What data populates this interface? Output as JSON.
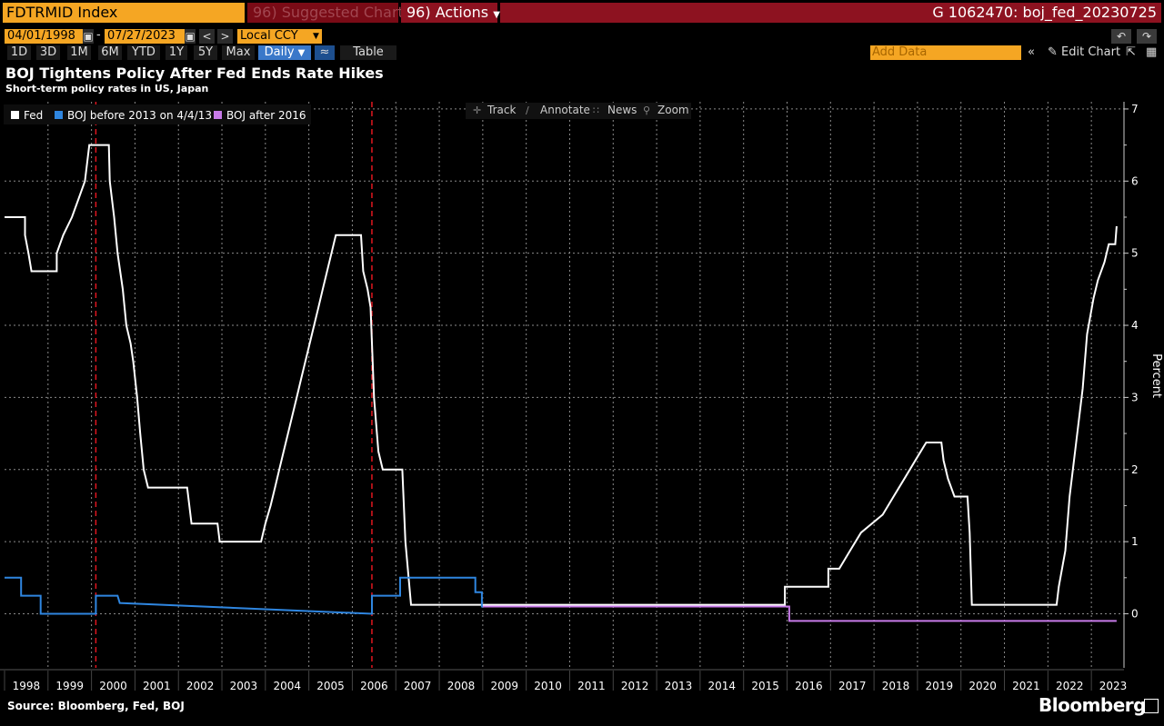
{
  "toolbar": {
    "ticker": "FDTRMID Index",
    "suggested": "Suggested Charts",
    "suggested_icon": "96",
    "actions": "Actions",
    "actions_icon": "96",
    "chart_id": "G 1062470: boj_fed_20230725",
    "start_date": "04/01/1998",
    "date_sep": "-",
    "end_date": "07/27/2023",
    "currency": "Local CCY",
    "periods": [
      "1D",
      "3D",
      "1M",
      "6M",
      "YTD",
      "1Y",
      "5Y",
      "Max"
    ],
    "frequency": "Daily",
    "table_label": "Table",
    "add_data_placeholder": "Add Data",
    "edit_chart": "Edit Chart"
  },
  "chart_tools": [
    "Track",
    "Annotate",
    "News",
    "Zoom"
  ],
  "source": "Source: Bloomberg, Fed, BOJ",
  "brand": "Bloomberg",
  "colors": {
    "fed": "#ffffff",
    "boj_before": "#2f86e0",
    "boj_after": "#c77ae8",
    "vline": "#e0161f",
    "grid": "#8a8a8a"
  },
  "chart_data": {
    "type": "line",
    "title": "BOJ Tightens Policy After Fed Ends Rate Hikes",
    "subtitle": "Short-term policy rates in US, Japan",
    "ylabel": "Percent",
    "ylim": [
      -0.75,
      7.1
    ],
    "yticks": [
      0,
      1,
      2,
      3,
      4,
      5,
      6,
      7
    ],
    "xlim": [
      1998.0,
      2023.75
    ],
    "xticks": [
      "1998",
      "1999",
      "2000",
      "2001",
      "2002",
      "2003",
      "2004",
      "2005",
      "2006",
      "2007",
      "2008",
      "2009",
      "2010",
      "2011",
      "2012",
      "2013",
      "2014",
      "2015",
      "2016",
      "2017",
      "2018",
      "2019",
      "2020",
      "2021",
      "2022",
      "2023"
    ],
    "legend": [
      "Fed",
      "BOJ before 2013 on 4/4/13",
      "BOJ after 2016"
    ],
    "legend_position": "top-left",
    "grid": true,
    "vlines": [
      2000.1,
      2006.45
    ],
    "series": [
      {
        "name": "Fed",
        "points": [
          [
            1998.0,
            5.5
          ],
          [
            1998.47,
            5.5
          ],
          [
            1998.47,
            5.25
          ],
          [
            1998.55,
            5.0
          ],
          [
            1998.62,
            4.75
          ],
          [
            1999.2,
            4.75
          ],
          [
            1999.2,
            5.0
          ],
          [
            1999.35,
            5.25
          ],
          [
            1999.55,
            5.5
          ],
          [
            1999.7,
            5.75
          ],
          [
            1999.85,
            6.0
          ],
          [
            1999.95,
            6.5
          ],
          [
            2000.4,
            6.5
          ],
          [
            2000.42,
            6.0
          ],
          [
            2000.52,
            5.5
          ],
          [
            2000.6,
            5.0
          ],
          [
            2000.72,
            4.5
          ],
          [
            2000.8,
            4.0
          ],
          [
            2000.9,
            3.75
          ],
          [
            2000.96,
            3.5
          ],
          [
            2001.05,
            3.0
          ],
          [
            2001.12,
            2.5
          ],
          [
            2001.2,
            2.0
          ],
          [
            2001.3,
            1.75
          ],
          [
            2002.2,
            1.75
          ],
          [
            2002.3,
            1.25
          ],
          [
            2002.9,
            1.25
          ],
          [
            2002.95,
            1.0
          ],
          [
            2003.9,
            1.0
          ],
          [
            2004.0,
            1.25
          ],
          [
            2004.12,
            1.5
          ],
          [
            2004.22,
            1.75
          ],
          [
            2004.32,
            2.0
          ],
          [
            2004.42,
            2.25
          ],
          [
            2004.52,
            2.5
          ],
          [
            2004.62,
            2.75
          ],
          [
            2004.72,
            3.0
          ],
          [
            2004.82,
            3.25
          ],
          [
            2004.92,
            3.5
          ],
          [
            2005.02,
            3.75
          ],
          [
            2005.12,
            4.0
          ],
          [
            2005.22,
            4.25
          ],
          [
            2005.32,
            4.5
          ],
          [
            2005.42,
            4.75
          ],
          [
            2005.52,
            5.0
          ],
          [
            2005.62,
            5.25
          ],
          [
            2006.2,
            5.25
          ],
          [
            2006.25,
            4.75
          ],
          [
            2006.35,
            4.5
          ],
          [
            2006.42,
            4.25
          ],
          [
            2006.5,
            3.0
          ],
          [
            2006.6,
            2.25
          ],
          [
            2006.7,
            2.0
          ],
          [
            2007.15,
            2.0
          ],
          [
            2007.22,
            1.0
          ],
          [
            2007.35,
            0.125
          ],
          [
            2015.95,
            0.125
          ],
          [
            2015.95,
            0.375
          ],
          [
            2016.95,
            0.375
          ],
          [
            2016.95,
            0.625
          ],
          [
            2017.2,
            0.625
          ],
          [
            2017.45,
            0.875
          ],
          [
            2017.7,
            1.125
          ],
          [
            2018.2,
            1.375
          ],
          [
            2018.45,
            1.625
          ],
          [
            2018.7,
            1.875
          ],
          [
            2018.95,
            2.125
          ],
          [
            2019.2,
            2.375
          ],
          [
            2019.55,
            2.375
          ],
          [
            2019.6,
            2.125
          ],
          [
            2019.7,
            1.875
          ],
          [
            2019.85,
            1.625
          ],
          [
            2020.15,
            1.625
          ],
          [
            2020.2,
            1.125
          ],
          [
            2020.25,
            0.125
          ],
          [
            2022.2,
            0.125
          ],
          [
            2022.25,
            0.375
          ],
          [
            2022.4,
            0.875
          ],
          [
            2022.5,
            1.625
          ],
          [
            2022.65,
            2.375
          ],
          [
            2022.8,
            3.125
          ],
          [
            2022.9,
            3.875
          ],
          [
            2023.05,
            4.375
          ],
          [
            2023.15,
            4.625
          ],
          [
            2023.3,
            4.875
          ],
          [
            2023.4,
            5.125
          ],
          [
            2023.55,
            5.125
          ],
          [
            2023.58,
            5.375
          ]
        ]
      },
      {
        "name": "BOJ before 2013 on 4/4/13",
        "points": [
          [
            1998.0,
            0.5
          ],
          [
            1998.38,
            0.5
          ],
          [
            1998.38,
            0.25
          ],
          [
            1998.83,
            0.25
          ],
          [
            1998.83,
            0.0
          ],
          [
            2000.1,
            0.0
          ],
          [
            2000.1,
            0.25
          ],
          [
            2000.6,
            0.25
          ],
          [
            2000.65,
            0.15
          ],
          [
            2006.45,
            0.0
          ],
          [
            2006.45,
            0.25
          ],
          [
            2007.1,
            0.25
          ],
          [
            2007.1,
            0.5
          ],
          [
            2008.83,
            0.5
          ],
          [
            2008.83,
            0.3
          ],
          [
            2008.98,
            0.3
          ],
          [
            2008.98,
            0.1
          ],
          [
            2013.25,
            0.1
          ]
        ]
      },
      {
        "name": "BOJ after 2016",
        "points": [
          [
            2009.0,
            0.1
          ],
          [
            2016.05,
            0.1
          ],
          [
            2016.05,
            -0.1
          ],
          [
            2023.58,
            -0.1
          ]
        ]
      }
    ]
  }
}
